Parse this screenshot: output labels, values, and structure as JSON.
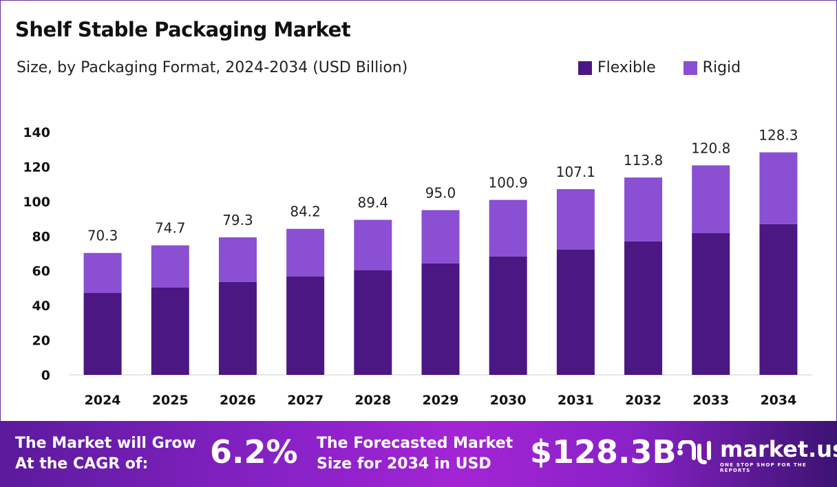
{
  "chart_data": {
    "type": "bar",
    "stacked": true,
    "title": "Shelf Stable Packaging Market",
    "subtitle": "Size, by Packaging Format, 2024-2034 (USD Billion)",
    "categories": [
      "2024",
      "2025",
      "2026",
      "2027",
      "2028",
      "2029",
      "2030",
      "2031",
      "2032",
      "2033",
      "2034"
    ],
    "series": [
      {
        "name": "Flexible",
        "color": "#4b1782",
        "values": [
          47.2,
          50.4,
          53.6,
          56.7,
          60.3,
          64.3,
          68.3,
          72.2,
          77.0,
          81.7,
          86.9
        ]
      },
      {
        "name": "Rigid",
        "color": "#8a4fd2",
        "values": [
          23.1,
          24.3,
          25.7,
          27.5,
          29.1,
          30.7,
          32.6,
          34.9,
          36.8,
          39.1,
          41.4
        ]
      }
    ],
    "totals": [
      "70.3",
      "74.7",
      "79.3",
      "84.2",
      "89.4",
      "95.0",
      "100.9",
      "107.1",
      "113.8",
      "120.8",
      "128.3"
    ],
    "yticks": [
      "0",
      "20",
      "40",
      "60",
      "80",
      "100",
      "120",
      "140"
    ],
    "ylim": [
      0,
      140
    ],
    "grid": false,
    "legend_position": "top-right"
  },
  "footer": {
    "cagr_label_1": "The Market will Grow",
    "cagr_label_2": "At the CAGR of:",
    "cagr_value": "6.2%",
    "forecast_label_1": "The Forecasted Market",
    "forecast_label_2": "Size for 2034 in USD",
    "forecast_value": "$128.3B",
    "logo_name": "market.us",
    "logo_tagline": "ONE STOP SHOP FOR THE REPORTS"
  }
}
